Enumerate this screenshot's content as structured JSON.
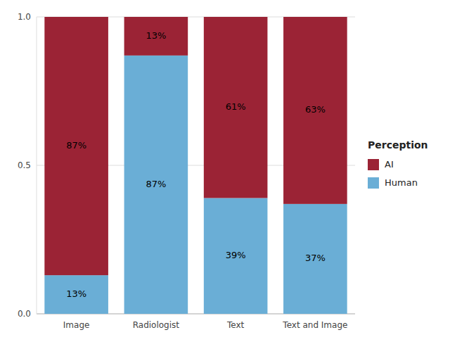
{
  "chart_data": {
    "type": "bar",
    "stacked": true,
    "categories": [
      "Image",
      "Radiologist",
      "Text",
      "Text and Image"
    ],
    "series": [
      {
        "name": "Human",
        "color": "#6aaed6",
        "values": [
          0.13,
          0.87,
          0.39,
          0.37
        ],
        "value_labels": [
          "13%",
          "87%",
          "39%",
          "37%"
        ]
      },
      {
        "name": "AI",
        "color": "#9b2335",
        "values": [
          0.87,
          0.13,
          0.61,
          0.63
        ],
        "value_labels": [
          "87%",
          "13%",
          "61%",
          "63%"
        ]
      }
    ],
    "ylim": [
      0.0,
      1.0
    ],
    "yticks": [
      {
        "value": 0.0,
        "label": "0.0"
      },
      0.5,
      {
        "value": 1.0,
        "label": "1.0"
      }
    ],
    "grid": true,
    "data_labels": true,
    "legend": "right",
    "legend_title": "Perception"
  }
}
